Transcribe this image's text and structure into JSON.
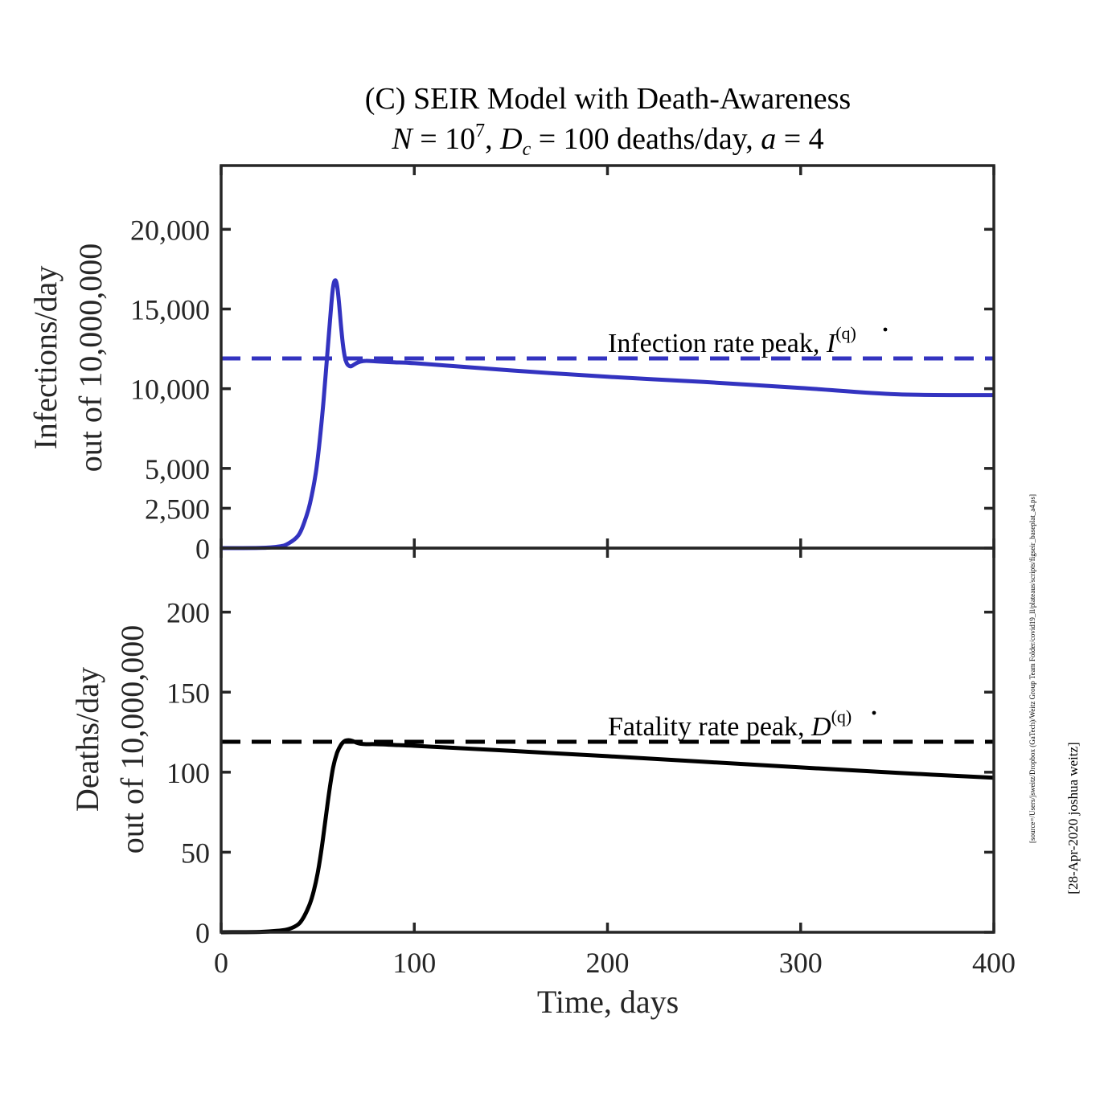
{
  "chart_data": {
    "type": "line",
    "title": {
      "line1": "(C) SEIR Model with Death-Awareness",
      "line2": "N = 10^7, D_c = 100 deaths/day, a = 4",
      "line2_parts": {
        "n_var": "N",
        "n_eq": " = 10",
        "n_exp": "7",
        "sep": ", ",
        "d_var": "D",
        "d_sub": "c",
        "d_eq": " = 100 deaths/day, ",
        "a_var": "a",
        "a_eq": " = 4"
      }
    },
    "xlabel": "Time, days",
    "xlim": [
      0,
      400
    ],
    "xticks": [
      0,
      100,
      200,
      300,
      400
    ],
    "xtick_labels": [
      "0",
      "100",
      "200",
      "300",
      "400"
    ],
    "panels": [
      {
        "name": "infections",
        "ylabel_line1": "Infections/day",
        "ylabel_line2": "out of 10,000,000",
        "ylim": [
          0,
          24000
        ],
        "yticks": [
          0,
          2500,
          5000,
          10000,
          15000,
          20000
        ],
        "ytick_labels": [
          "0",
          "2,500",
          "5,000",
          "10,000",
          "15,000",
          "20,000"
        ],
        "color": "#3333c0",
        "series": {
          "x": [
            0,
            20,
            30,
            35,
            40,
            43,
            46,
            49,
            51,
            53,
            55,
            57,
            58,
            59,
            60,
            61,
            62,
            63,
            64,
            65,
            66,
            67,
            68,
            70,
            72,
            75,
            80,
            90,
            100,
            150,
            200,
            250,
            300,
            350,
            400
          ],
          "y": [
            0,
            10,
            100,
            300,
            800,
            1600,
            2800,
            4700,
            6700,
            9200,
            12200,
            15200,
            16400,
            16800,
            16500,
            15400,
            14000,
            12800,
            12000,
            11600,
            11450,
            11400,
            11450,
            11600,
            11700,
            11750,
            11720,
            11650,
            11600,
            11150,
            10750,
            10420,
            10050,
            9650,
            9600
          ]
        },
        "peak_line": {
          "value": 11900,
          "label_prefix": "Infection rate peak, ",
          "label_var": "I",
          "label_sup": "(q)"
        }
      },
      {
        "name": "deaths",
        "ylabel_line1": "Deaths/day",
        "ylabel_line2": "out of 10,000,000",
        "ylim": [
          0,
          240
        ],
        "yticks": [
          0,
          50,
          100,
          150,
          200
        ],
        "ytick_labels": [
          "0",
          "50",
          "100",
          "150",
          "200"
        ],
        "color": "#000000",
        "series": {
          "x": [
            0,
            20,
            30,
            35,
            40,
            43,
            46,
            48,
            50,
            52,
            54,
            56,
            58,
            60,
            62,
            64,
            66,
            68,
            70,
            72,
            75,
            80,
            90,
            100,
            150,
            200,
            250,
            300,
            350,
            400
          ],
          "y": [
            0,
            0.2,
            1,
            2,
            5,
            10,
            18,
            26,
            37,
            52,
            70,
            88,
            103,
            112,
            117,
            119.5,
            120,
            119.5,
            118.5,
            117.8,
            117.5,
            117.5,
            117,
            116.5,
            113.3,
            110,
            106.5,
            103,
            99.6,
            96.5
          ]
        },
        "peak_line": {
          "value": 119,
          "label_prefix": "Fatality rate peak, ",
          "label_var": "D",
          "label_sup": "(q)"
        }
      }
    ],
    "grid": false,
    "legend": "none"
  },
  "side_notes": {
    "source_path": "[source=/Users/jsweitz/Dropbox (GaTech)/Weitz Group Team Folder/covid19_ll/plateaus/scripts/figseir_baseplat_a4.ps]",
    "date_author": "[28-Apr-2020 joshua weitz]"
  }
}
